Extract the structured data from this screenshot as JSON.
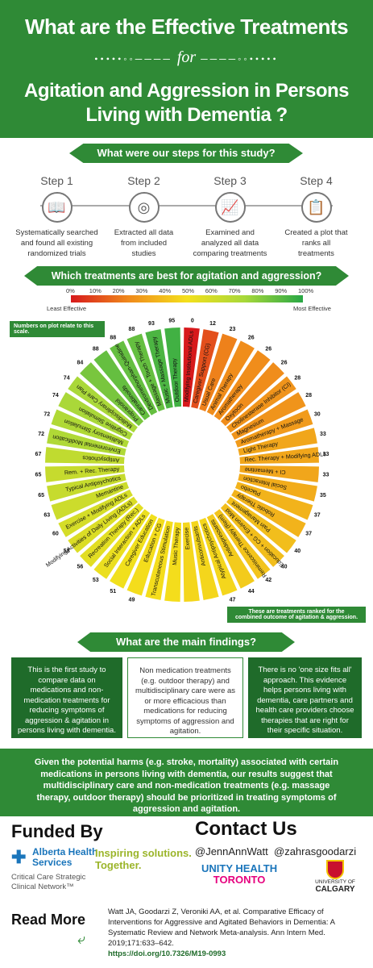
{
  "header": {
    "title_line1": "What are the Effective Treatments",
    "for_word": "for",
    "title_line2a": "Agitation and Aggression in Persons",
    "title_line2b": "Living with Dementia ?"
  },
  "steps_section": {
    "heading": "What were our steps for this study?",
    "steps": [
      {
        "label": "Step 1",
        "desc1": "Systematically searched",
        "desc2": "and found all existing",
        "desc3": "randomized trials",
        "icon": "book-icon"
      },
      {
        "label": "Step 2",
        "desc1": "Extracted all data",
        "desc2": "from included",
        "desc3": "studies",
        "icon": "target-icon"
      },
      {
        "label": "Step 3",
        "desc1": "Examined and",
        "desc2": "analyzed all data",
        "desc3": "comparing treatments",
        "icon": "chart-icon"
      },
      {
        "label": "Step 4",
        "desc1": "Created a plot that",
        "desc2": "ranks all",
        "desc3": "treatments",
        "icon": "clipboard-icon"
      }
    ]
  },
  "ranking_section": {
    "heading": "Which treatments are best for agitation and aggression?",
    "scale_ticks": [
      "0%",
      "10%",
      "20%",
      "30%",
      "40%",
      "50%",
      "60%",
      "70%",
      "80%",
      "90%",
      "100%"
    ],
    "least": "Least Effective",
    "most": "Most Effective",
    "note_left": "Numbers on plot relate to this scale.",
    "note_right_1": "These are treatments ranked for the",
    "note_right_2": "combined outcome of  agitation & aggression."
  },
  "chart_data": {
    "type": "radial-bar",
    "treatments": [
      {
        "name": "Modifying Institutional ADLs",
        "value": 0
      },
      {
        "name": "Caregiver Support (CG)",
        "value": 12
      },
      {
        "name": "Usual Care",
        "value": 23
      },
      {
        "name": "Animal Therapy",
        "value": 26
      },
      {
        "name": "Aromatherapy",
        "value": 26
      },
      {
        "name": "Oxytocin",
        "value": 26
      },
      {
        "name": "Cholinesterase Inhibitor (CI)",
        "value": 28
      },
      {
        "name": "Magnesium",
        "value": 28
      },
      {
        "name": "Aromatherapy + Massage",
        "value": 30
      },
      {
        "name": "Light Therapy",
        "value": 33
      },
      {
        "name": "Rec. Therapy + Modifying ADLs",
        "value": 33
      },
      {
        "name": "CI + Memantine",
        "value": 33
      },
      {
        "name": "Social Interaction",
        "value": 35
      },
      {
        "name": "Placebo",
        "value": 37
      },
      {
        "name": "Robotic Therapy",
        "value": 37
      },
      {
        "name": "Pain Management",
        "value": 40
      },
      {
        "name": "Education + CG + Environ Mod",
        "value": 40
      },
      {
        "name": "Reminiscence Therapy (Rem)",
        "value": 42
      },
      {
        "name": "Antidepressants",
        "value": 44
      },
      {
        "name": "Atypical Antipsychotics",
        "value": 47
      },
      {
        "name": "Anticonvulsants",
        "value": 47
      },
      {
        "name": "Exercise",
        "value": 47
      },
      {
        "name": "Music Therapy",
        "value": 49
      },
      {
        "name": "Transcutaneous Stimulation",
        "value": 49
      },
      {
        "name": "Education + CG",
        "value": 49
      },
      {
        "name": "Caregiver Education",
        "value": 51
      },
      {
        "name": "Social Interaction + ADLs",
        "value": 53
      },
      {
        "name": "Recreation Therapy (Rec.)",
        "value": 56
      },
      {
        "name": "Modifying Activities of Daily Living (ADLs)",
        "value": 58
      },
      {
        "name": "Exercise + Modifying ADLs",
        "value": 60
      },
      {
        "name": "Memantine",
        "value": 63
      },
      {
        "name": "Typical Antipsychotics",
        "value": 65
      },
      {
        "name": "Rem. + Rec. Therapy",
        "value": 65
      },
      {
        "name": "Antipsychotics",
        "value": 67
      },
      {
        "name": "Environmental Modification",
        "value": 72
      },
      {
        "name": "Multisensory Stimulation",
        "value": 72
      },
      {
        "name": "Cognitive Stimulation",
        "value": 74
      },
      {
        "name": "Multidisciplinary Care Plan",
        "value": 74
      },
      {
        "name": "Propranolol",
        "value": 84
      },
      {
        "name": "Cannabinoids",
        "value": 88
      },
      {
        "name": "Dextromethorphan-Quinidine",
        "value": 88
      },
      {
        "name": "Massage + Touch Therapy",
        "value": 88
      },
      {
        "name": "Music + Massage Therapy",
        "value": 93
      },
      {
        "name": "Outdoor Therapy",
        "value": 95
      }
    ]
  },
  "findings_section": {
    "heading": "What are the main findings?",
    "box1": "This is the first study to compare data on medications and non-medication treatments for reducing symptoms of aggression & agitation in persons living with dementia.",
    "box2": "Non medication treatments (e.g. outdoor therapy) and multidisciplinary care were as or more efficacious than medications for reducing symptoms of aggression and agitation.",
    "box3": "There is no 'one size fits all' approach. This evidence helps persons living with dementia, care partners and health care providers choose therapies that are right for their specific situation.",
    "conclusion": "Given the potential harms (e.g. stroke, mortality) associated with certain medications in persons living with dementia, our results suggest that multidisciplinary care and non-medication treatments (e.g. massage therapy, outdoor therapy) should be prioritized in treating symptoms of aggression and agitation."
  },
  "footer": {
    "funded_by": "Funded By",
    "ahs_name1": "Alberta Health",
    "ahs_name2": "Services",
    "ahs_tag1": "Inspiring solutions.",
    "ahs_tag2": "Together.",
    "ahs_network1": "Critical Care Strategic",
    "ahs_network2": "Clinical Network™",
    "contact_us": "Contact Us",
    "handle1": "@JennAnnWatt",
    "handle2": "@zahrasgoodarzi",
    "unity1": "UNITY HEALTH",
    "unity2": "TORONTO",
    "ucalgary1": "UNIVERSITY OF",
    "ucalgary2": "CALGARY",
    "read_more": "Read More",
    "reference": "Watt JA, Goodarzi Z, Veroniki AA, et al. Comparative Efficacy of Interventions for Aggressive and Agitated Behaviors in Dementia: A Systematic Review and Network Meta-analysis. Ann Intern Med. 2019;171:633–642.",
    "doi": "https://doi.org/10.7326/M19-0993"
  }
}
